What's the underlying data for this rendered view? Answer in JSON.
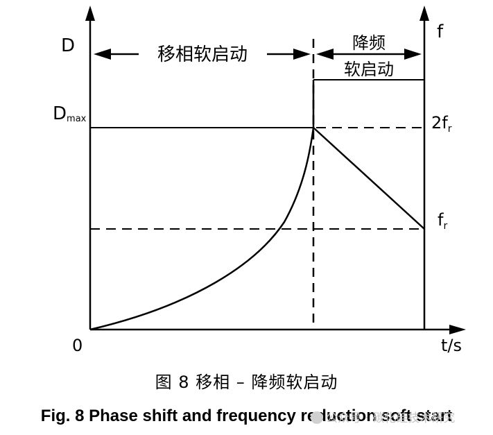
{
  "diagram": {
    "y_left_label": "D",
    "y_right_label": "f",
    "x_label": "t/s",
    "origin_label": "0",
    "dmax_label_main": "D",
    "dmax_label_sub": "max",
    "two_fr_main": "2f",
    "two_fr_sub": "r",
    "fr_main": "f",
    "fr_sub": "r",
    "phase_shift_label": "移相软启动",
    "freq_reduction_label_line1": "降频",
    "freq_reduction_label_line2": "软启动"
  },
  "caption": {
    "chinese": "图 8  移相 – 降频软启动",
    "english": "Fig. 8  Phase shift and frequency reduction soft start"
  },
  "watermark": {
    "text": "公众号 · 碳化硅技术研究"
  }
}
